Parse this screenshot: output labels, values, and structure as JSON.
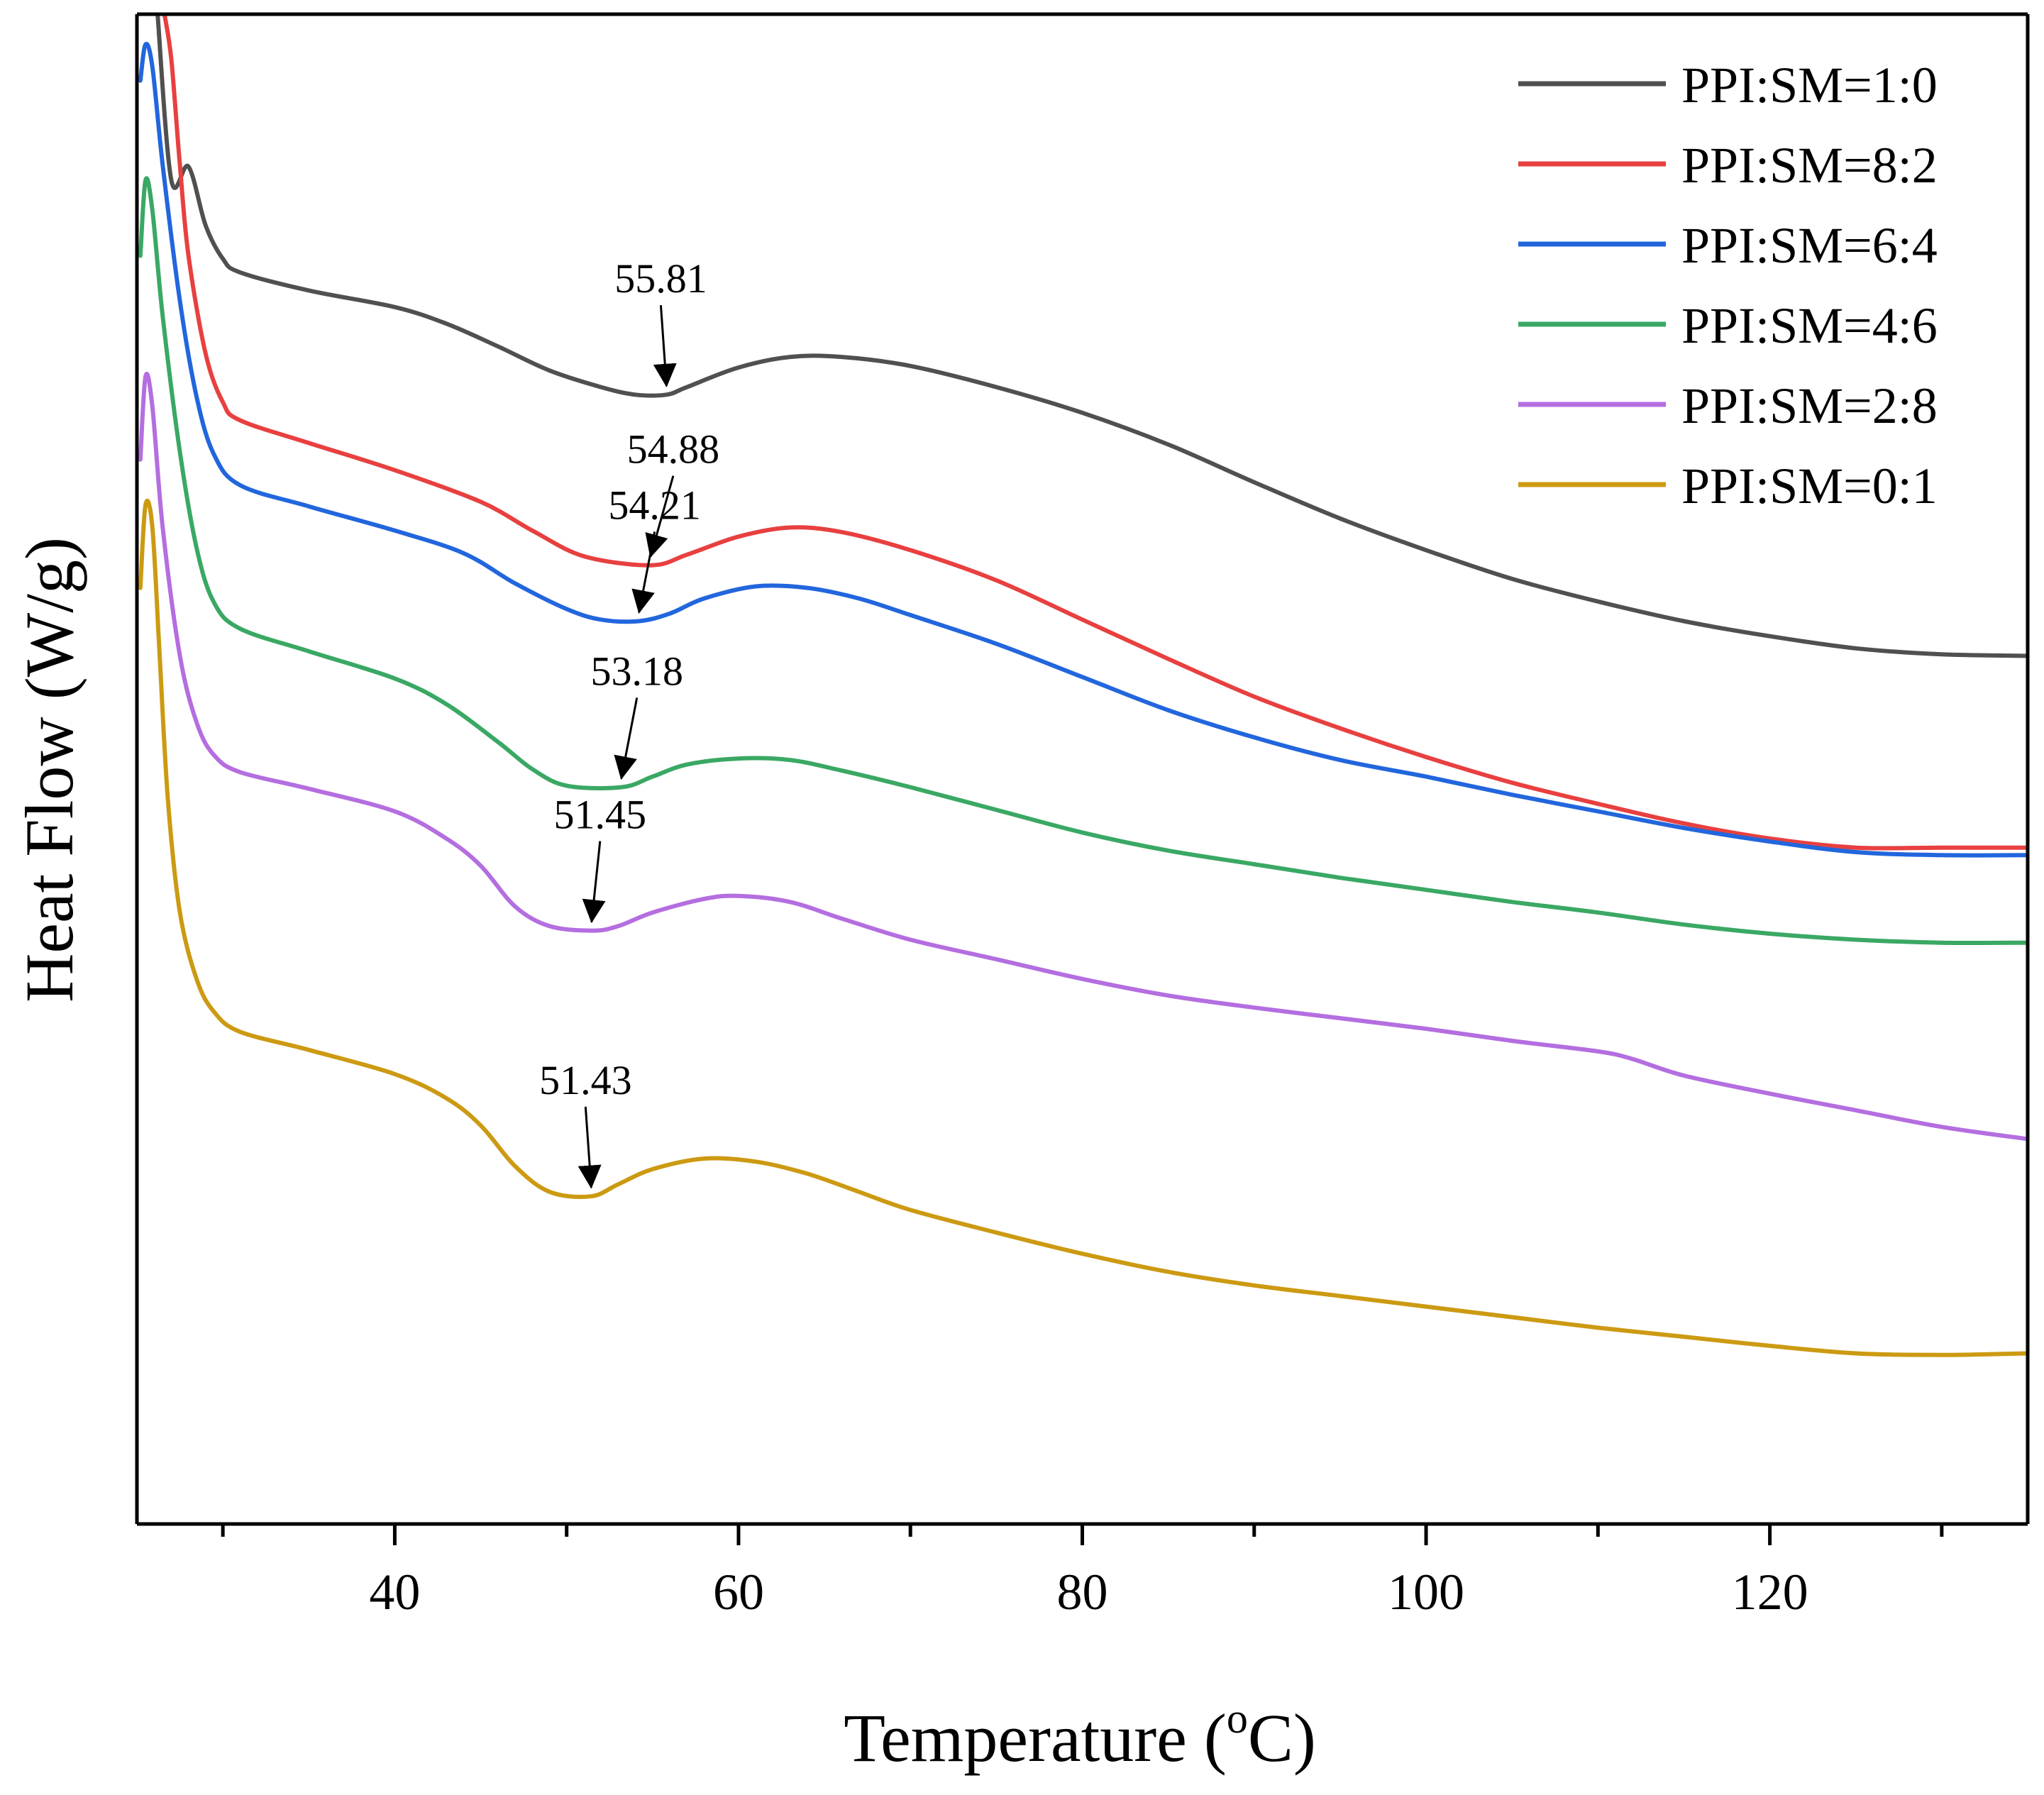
{
  "chart_data": {
    "type": "line",
    "title": "",
    "xlabel": "Temperature (",
    "xlabel_sup": "o",
    "xlabel_tail": "C)",
    "ylabel": "Heat Flow (W/g)",
    "xlim": [
      25,
      135
    ],
    "ylim": [
      0,
      100
    ],
    "x_ticks": [
      40,
      60,
      80,
      100,
      120
    ],
    "x_minor_ticks": [
      30,
      50,
      70,
      90,
      110,
      130
    ],
    "y_ticks_shown": false,
    "grid": false,
    "legend_position": "top-right",
    "series": [
      {
        "name": "PPI:SM=1:0",
        "color": "#505050",
        "peak": "55.81",
        "peak_x": 55.81,
        "points": [
          [
            26.2,
            100
          ],
          [
            27,
            89
          ],
          [
            28,
            89.9
          ],
          [
            29,
            86
          ],
          [
            30,
            83.8
          ],
          [
            31,
            82.9
          ],
          [
            35,
            81.7
          ],
          [
            40,
            80.6
          ],
          [
            43,
            79.5
          ],
          [
            46,
            78
          ],
          [
            49,
            76.4
          ],
          [
            52,
            75.3
          ],
          [
            54,
            74.8
          ],
          [
            55.8,
            74.8
          ],
          [
            57,
            75.3
          ],
          [
            60,
            76.6
          ],
          [
            63,
            77.3
          ],
          [
            66,
            77.3
          ],
          [
            70,
            76.7
          ],
          [
            75,
            75.3
          ],
          [
            80,
            73.6
          ],
          [
            85,
            71.5
          ],
          [
            90,
            69
          ],
          [
            95,
            66.6
          ],
          [
            100,
            64.5
          ],
          [
            105,
            62.6
          ],
          [
            110,
            61.1
          ],
          [
            115,
            59.8
          ],
          [
            120,
            58.8
          ],
          [
            125,
            58
          ],
          [
            130,
            57.6
          ],
          [
            135,
            57.5
          ]
        ]
      },
      {
        "name": "PPI:SM=8:2",
        "color": "#e84040",
        "peak": "54.88",
        "peak_x": 54.88,
        "points": [
          [
            26.6,
            100
          ],
          [
            27,
            97
          ],
          [
            27.5,
            90
          ],
          [
            28,
            84
          ],
          [
            29,
            77.5
          ],
          [
            30,
            74.3
          ],
          [
            31,
            73.1
          ],
          [
            35,
            71.6
          ],
          [
            40,
            69.8
          ],
          [
            45,
            67.7
          ],
          [
            48,
            65.8
          ],
          [
            51,
            64.1
          ],
          [
            54.9,
            63.5
          ],
          [
            57,
            64.2
          ],
          [
            60,
            65.4
          ],
          [
            63,
            66
          ],
          [
            66,
            65.7
          ],
          [
            70,
            64.5
          ],
          [
            75,
            62.5
          ],
          [
            80,
            59.9
          ],
          [
            85,
            57.3
          ],
          [
            90,
            54.8
          ],
          [
            95,
            52.7
          ],
          [
            100,
            50.8
          ],
          [
            105,
            49.1
          ],
          [
            110,
            47.7
          ],
          [
            115,
            46.4
          ],
          [
            120,
            45.4
          ],
          [
            125,
            44.8
          ],
          [
            130,
            44.8
          ],
          [
            135,
            44.8
          ]
        ]
      },
      {
        "name": "PPI:SM=6:4",
        "color": "#2266dd",
        "peak": "54.21",
        "peak_x": 54.21,
        "points": [
          [
            25.2,
            95.6
          ],
          [
            25.5,
            98
          ],
          [
            25.9,
            96.5
          ],
          [
            26.5,
            90
          ],
          [
            27.5,
            81
          ],
          [
            28.5,
            74.5
          ],
          [
            29.5,
            70.8
          ],
          [
            31,
            68.8
          ],
          [
            35,
            67.4
          ],
          [
            40,
            65.8
          ],
          [
            44,
            64.3
          ],
          [
            47,
            62.3
          ],
          [
            50,
            60.6
          ],
          [
            52,
            59.9
          ],
          [
            54.2,
            59.8
          ],
          [
            56,
            60.3
          ],
          [
            58,
            61.3
          ],
          [
            61,
            62.1
          ],
          [
            64,
            62
          ],
          [
            67,
            61.3
          ],
          [
            70,
            60.2
          ],
          [
            75,
            58.3
          ],
          [
            80,
            56.1
          ],
          [
            85,
            53.9
          ],
          [
            90,
            52.1
          ],
          [
            95,
            50.6
          ],
          [
            100,
            49.5
          ],
          [
            105,
            48.3
          ],
          [
            110,
            47.2
          ],
          [
            115,
            46.1
          ],
          [
            120,
            45.2
          ],
          [
            125,
            44.5
          ],
          [
            130,
            44.3
          ],
          [
            135,
            44.3
          ]
        ]
      },
      {
        "name": "PPI:SM=4:6",
        "color": "#3aa864",
        "peak": "53.18",
        "peak_x": 53.18,
        "points": [
          [
            25.2,
            84
          ],
          [
            25.5,
            89
          ],
          [
            25.9,
            87
          ],
          [
            26.5,
            80
          ],
          [
            27.5,
            71
          ],
          [
            28.5,
            64.5
          ],
          [
            29.5,
            61
          ],
          [
            31,
            59.3
          ],
          [
            35,
            57.8
          ],
          [
            40,
            56
          ],
          [
            43,
            54.3
          ],
          [
            46,
            51.8
          ],
          [
            48,
            50
          ],
          [
            50,
            48.9
          ],
          [
            53.2,
            48.8
          ],
          [
            55,
            49.5
          ],
          [
            57,
            50.3
          ],
          [
            60,
            50.7
          ],
          [
            63,
            50.6
          ],
          [
            66,
            49.9
          ],
          [
            70,
            48.8
          ],
          [
            75,
            47.3
          ],
          [
            80,
            45.8
          ],
          [
            85,
            44.6
          ],
          [
            90,
            43.7
          ],
          [
            95,
            42.8
          ],
          [
            100,
            42
          ],
          [
            105,
            41.2
          ],
          [
            110,
            40.5
          ],
          [
            115,
            39.7
          ],
          [
            120,
            39.1
          ],
          [
            125,
            38.7
          ],
          [
            130,
            38.5
          ],
          [
            135,
            38.5
          ]
        ]
      },
      {
        "name": "PPI:SM=2:8",
        "color": "#b46ee0",
        "peak": "51.45",
        "peak_x": 51.45,
        "points": [
          [
            25.2,
            70.5
          ],
          [
            25.5,
            76
          ],
          [
            25.9,
            74
          ],
          [
            26.5,
            66
          ],
          [
            27.5,
            57.5
          ],
          [
            28.5,
            53
          ],
          [
            29.5,
            50.9
          ],
          [
            31,
            49.8
          ],
          [
            35,
            48.7
          ],
          [
            40,
            47.2
          ],
          [
            43,
            45.4
          ],
          [
            45,
            43.6
          ],
          [
            47,
            40.9
          ],
          [
            49,
            39.6
          ],
          [
            51.5,
            39.3
          ],
          [
            53,
            39.6
          ],
          [
            55,
            40.5
          ],
          [
            58,
            41.4
          ],
          [
            60,
            41.6
          ],
          [
            63,
            41.2
          ],
          [
            66,
            40.1
          ],
          [
            70,
            38.7
          ],
          [
            75,
            37.4
          ],
          [
            80,
            36.1
          ],
          [
            85,
            35
          ],
          [
            90,
            34.2
          ],
          [
            95,
            33.5
          ],
          [
            100,
            32.8
          ],
          [
            105,
            32
          ],
          [
            110,
            31.3
          ],
          [
            112,
            30.8
          ],
          [
            115,
            29.7
          ],
          [
            120,
            28.5
          ],
          [
            125,
            27.4
          ],
          [
            130,
            26.3
          ],
          [
            135,
            25.5
          ]
        ]
      },
      {
        "name": "PPI:SM=0:1",
        "color": "#cc9a12",
        "peak": "51.43",
        "peak_x": 51.43,
        "points": [
          [
            25.2,
            62
          ],
          [
            25.5,
            67.5
          ],
          [
            25.9,
            66
          ],
          [
            26.3,
            58
          ],
          [
            26.8,
            48
          ],
          [
            27.5,
            40.5
          ],
          [
            28.5,
            36
          ],
          [
            29.5,
            33.9
          ],
          [
            31,
            32.6
          ],
          [
            35,
            31.4
          ],
          [
            40,
            29.8
          ],
          [
            43,
            28.2
          ],
          [
            45,
            26.4
          ],
          [
            47,
            23.7
          ],
          [
            49,
            22
          ],
          [
            51.4,
            21.7
          ],
          [
            53,
            22.5
          ],
          [
            55,
            23.5
          ],
          [
            58,
            24.2
          ],
          [
            61,
            24
          ],
          [
            64,
            23.2
          ],
          [
            67,
            22
          ],
          [
            70,
            20.8
          ],
          [
            75,
            19.3
          ],
          [
            80,
            17.9
          ],
          [
            85,
            16.7
          ],
          [
            90,
            15.8
          ],
          [
            95,
            15.1
          ],
          [
            100,
            14.4
          ],
          [
            105,
            13.7
          ],
          [
            110,
            13
          ],
          [
            115,
            12.4
          ],
          [
            120,
            11.8
          ],
          [
            125,
            11.3
          ],
          [
            130,
            11.2
          ],
          [
            135,
            11.3
          ]
        ]
      }
    ]
  }
}
